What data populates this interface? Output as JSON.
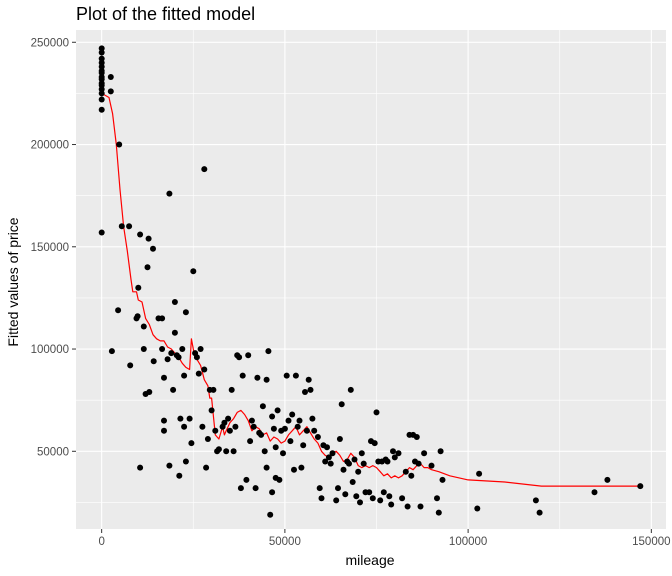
{
  "chart_data": {
    "type": "scatter",
    "title": "Plot of the fitted model",
    "xlabel": "mileage",
    "ylabel": "Fitted values of price",
    "xlim": [
      -7000,
      154000
    ],
    "ylim": [
      12000,
      256000
    ],
    "x_ticks": [
      0,
      50000,
      100000,
      150000
    ],
    "x_tick_labels": [
      "0",
      "50000",
      "100000",
      "150000"
    ],
    "y_ticks": [
      50000,
      100000,
      150000,
      200000,
      250000
    ],
    "y_tick_labels": [
      "50000",
      "100000",
      "150000",
      "200000",
      "250000"
    ],
    "grid": true,
    "legend": "none",
    "colors": {
      "panel": "#ebebeb",
      "grid": "#ffffff",
      "points": "#000000",
      "fit_line": "#ff0000"
    },
    "series": [
      {
        "type": "scatter",
        "points": [
          [
            0,
            247000
          ],
          [
            0,
            245000
          ],
          [
            0,
            242000
          ],
          [
            0,
            240000
          ],
          [
            0,
            238000
          ],
          [
            0,
            236000
          ],
          [
            0,
            235000
          ],
          [
            0,
            233000
          ],
          [
            0,
            232000
          ],
          [
            0,
            230000
          ],
          [
            0,
            229000
          ],
          [
            0,
            227000
          ],
          [
            0,
            225000
          ],
          [
            0,
            222000
          ],
          [
            0,
            217000
          ],
          [
            0,
            157000
          ],
          [
            2500,
            233000
          ],
          [
            2500,
            226000
          ],
          [
            4800,
            200000
          ],
          [
            5500,
            160000
          ],
          [
            7500,
            160000
          ],
          [
            2800,
            99000
          ],
          [
            4500,
            119000
          ],
          [
            7800,
            92000
          ],
          [
            9500,
            115000
          ],
          [
            9800,
            116000
          ],
          [
            10000,
            130000
          ],
          [
            10500,
            156000
          ],
          [
            10500,
            42000
          ],
          [
            11500,
            100000
          ],
          [
            11500,
            111000
          ],
          [
            12000,
            78000
          ],
          [
            12500,
            140000
          ],
          [
            12800,
            154000
          ],
          [
            13000,
            79000
          ],
          [
            14000,
            149000
          ],
          [
            14200,
            94000
          ],
          [
            15500,
            115000
          ],
          [
            16500,
            115000
          ],
          [
            16500,
            100000
          ],
          [
            17000,
            86000
          ],
          [
            17000,
            65000
          ],
          [
            17000,
            60000
          ],
          [
            18000,
            95000
          ],
          [
            18500,
            176000
          ],
          [
            18500,
            43000
          ],
          [
            19000,
            98000
          ],
          [
            19500,
            80000
          ],
          [
            20000,
            108000
          ],
          [
            20000,
            123000
          ],
          [
            20500,
            97000
          ],
          [
            21000,
            96000
          ],
          [
            21200,
            38000
          ],
          [
            21500,
            66000
          ],
          [
            22000,
            100000
          ],
          [
            22500,
            87000
          ],
          [
            22500,
            62000
          ],
          [
            23000,
            118000
          ],
          [
            23000,
            45000
          ],
          [
            24000,
            66000
          ],
          [
            24500,
            54000
          ],
          [
            25000,
            138000
          ],
          [
            25500,
            98000
          ],
          [
            26000,
            96000
          ],
          [
            26500,
            88000
          ],
          [
            27000,
            100000
          ],
          [
            27500,
            62000
          ],
          [
            28000,
            188000
          ],
          [
            28000,
            90000
          ],
          [
            28500,
            42000
          ],
          [
            29000,
            56000
          ],
          [
            29500,
            80000
          ],
          [
            30000,
            70000
          ],
          [
            30500,
            80000
          ],
          [
            31000,
            60000
          ],
          [
            31500,
            50000
          ],
          [
            32000,
            51000
          ],
          [
            33000,
            62000
          ],
          [
            33500,
            64000
          ],
          [
            34000,
            50000
          ],
          [
            34500,
            66000
          ],
          [
            35000,
            60000
          ],
          [
            35500,
            80000
          ],
          [
            36000,
            50000
          ],
          [
            36500,
            62000
          ],
          [
            37000,
            97000
          ],
          [
            37500,
            96000
          ],
          [
            38000,
            32000
          ],
          [
            38500,
            87000
          ],
          [
            39500,
            36000
          ],
          [
            40000,
            97000
          ],
          [
            40500,
            55000
          ],
          [
            41000,
            65000
          ],
          [
            41500,
            62000
          ],
          [
            42000,
            32000
          ],
          [
            42500,
            86000
          ],
          [
            43000,
            59000
          ],
          [
            43500,
            58000
          ],
          [
            44000,
            72000
          ],
          [
            44500,
            50000
          ],
          [
            45000,
            85000
          ],
          [
            45000,
            42000
          ],
          [
            45500,
            99000
          ],
          [
            46000,
            19000
          ],
          [
            46500,
            30000
          ],
          [
            46500,
            67000
          ],
          [
            47000,
            61000
          ],
          [
            47500,
            52000
          ],
          [
            47500,
            37000
          ],
          [
            48000,
            70000
          ],
          [
            48500,
            36000
          ],
          [
            49000,
            60000
          ],
          [
            49500,
            49000
          ],
          [
            50000,
            61000
          ],
          [
            50500,
            87000
          ],
          [
            51000,
            65000
          ],
          [
            51500,
            55000
          ],
          [
            52000,
            68000
          ],
          [
            52500,
            41000
          ],
          [
            53000,
            87000
          ],
          [
            53500,
            62000
          ],
          [
            54000,
            65000
          ],
          [
            54500,
            42000
          ],
          [
            55000,
            53000
          ],
          [
            55500,
            79000
          ],
          [
            56000,
            60000
          ],
          [
            56500,
            85000
          ],
          [
            57000,
            80000
          ],
          [
            57500,
            66000
          ],
          [
            58000,
            60000
          ],
          [
            59000,
            57000
          ],
          [
            59500,
            32000
          ],
          [
            60000,
            27000
          ],
          [
            60500,
            53000
          ],
          [
            61000,
            45000
          ],
          [
            61500,
            52000
          ],
          [
            62000,
            47000
          ],
          [
            62500,
            44000
          ],
          [
            63000,
            49000
          ],
          [
            64000,
            26000
          ],
          [
            64500,
            32000
          ],
          [
            65000,
            56000
          ],
          [
            65500,
            73000
          ],
          [
            66000,
            41000
          ],
          [
            66500,
            29000
          ],
          [
            67000,
            45000
          ],
          [
            67500,
            44000
          ],
          [
            68000,
            80000
          ],
          [
            68500,
            35000
          ],
          [
            69000,
            46000
          ],
          [
            69500,
            28000
          ],
          [
            70000,
            40000
          ],
          [
            70500,
            25000
          ],
          [
            71000,
            49000
          ],
          [
            71500,
            44000
          ],
          [
            72000,
            30000
          ],
          [
            73000,
            30000
          ],
          [
            73500,
            55000
          ],
          [
            74000,
            27000
          ],
          [
            74500,
            54000
          ],
          [
            75000,
            69000
          ],
          [
            75500,
            45000
          ],
          [
            76000,
            26000
          ],
          [
            76500,
            45000
          ],
          [
            77000,
            30000
          ],
          [
            77500,
            46000
          ],
          [
            78000,
            45000
          ],
          [
            78500,
            28000
          ],
          [
            79000,
            24000
          ],
          [
            79500,
            50000
          ],
          [
            80000,
            47000
          ],
          [
            81000,
            49000
          ],
          [
            82000,
            27000
          ],
          [
            83000,
            40000
          ],
          [
            83500,
            23000
          ],
          [
            84000,
            58000
          ],
          [
            84500,
            38000
          ],
          [
            85000,
            58000
          ],
          [
            85500,
            45000
          ],
          [
            86000,
            57000
          ],
          [
            86500,
            44000
          ],
          [
            87000,
            23000
          ],
          [
            88000,
            49000
          ],
          [
            90000,
            43000
          ],
          [
            91500,
            27000
          ],
          [
            92000,
            20000
          ],
          [
            92500,
            50000
          ],
          [
            93000,
            36000
          ],
          [
            102500,
            22000
          ],
          [
            103000,
            39000
          ],
          [
            118500,
            26000
          ],
          [
            119500,
            20000
          ],
          [
            134500,
            30000
          ],
          [
            138000,
            36000
          ],
          [
            147000,
            33000
          ]
        ]
      },
      {
        "type": "line",
        "name": "",
        "points": [
          [
            0,
            225000
          ],
          [
            2000,
            223000
          ],
          [
            3000,
            215000
          ],
          [
            4000,
            200000
          ],
          [
            5000,
            178000
          ],
          [
            6000,
            160000
          ],
          [
            7000,
            148000
          ],
          [
            8000,
            134000
          ],
          [
            8500,
            128000
          ],
          [
            9500,
            128000
          ],
          [
            10000,
            124000
          ],
          [
            11000,
            123000
          ],
          [
            12000,
            115000
          ],
          [
            13000,
            112000
          ],
          [
            14000,
            107000
          ],
          [
            15000,
            105000
          ],
          [
            16000,
            104000
          ],
          [
            17000,
            104000
          ],
          [
            18000,
            101000
          ],
          [
            19000,
            100000
          ],
          [
            20000,
            98000
          ],
          [
            21000,
            96000
          ],
          [
            22000,
            93000
          ],
          [
            23000,
            91000
          ],
          [
            24000,
            90000
          ],
          [
            24500,
            105000
          ],
          [
            25000,
            100000
          ],
          [
            25500,
            96000
          ],
          [
            26000,
            95000
          ],
          [
            27000,
            92000
          ],
          [
            28000,
            85000
          ],
          [
            29000,
            82000
          ],
          [
            29500,
            76000
          ],
          [
            30000,
            76000
          ],
          [
            31000,
            58000
          ],
          [
            32000,
            56000
          ],
          [
            33000,
            62000
          ],
          [
            33500,
            58000
          ],
          [
            34000,
            60000
          ],
          [
            35000,
            64000
          ],
          [
            36000,
            66000
          ],
          [
            37000,
            69000
          ],
          [
            38000,
            70000
          ],
          [
            39000,
            68000
          ],
          [
            40000,
            65000
          ],
          [
            41000,
            60000
          ],
          [
            42000,
            62000
          ],
          [
            43000,
            61000
          ],
          [
            44000,
            58000
          ],
          [
            45000,
            59000
          ],
          [
            46000,
            55000
          ],
          [
            47000,
            57000
          ],
          [
            48000,
            56000
          ],
          [
            49000,
            54000
          ],
          [
            50000,
            55000
          ],
          [
            51000,
            58000
          ],
          [
            52000,
            60000
          ],
          [
            53000,
            62000
          ],
          [
            54000,
            58000
          ],
          [
            55000,
            60000
          ],
          [
            56000,
            62000
          ],
          [
            57000,
            59000
          ],
          [
            58000,
            56000
          ],
          [
            59000,
            54000
          ],
          [
            60000,
            50000
          ],
          [
            61000,
            48000
          ],
          [
            62000,
            47000
          ],
          [
            63000,
            49000
          ],
          [
            64000,
            50000
          ],
          [
            65000,
            48000
          ],
          [
            66000,
            45000
          ],
          [
            67000,
            46000
          ],
          [
            68000,
            49000
          ],
          [
            69000,
            47000
          ],
          [
            70000,
            43000
          ],
          [
            71000,
            42000
          ],
          [
            72000,
            43000
          ],
          [
            73000,
            42000
          ],
          [
            74000,
            43000
          ],
          [
            75000,
            42000
          ],
          [
            76000,
            40000
          ],
          [
            77000,
            38000
          ],
          [
            78000,
            39000
          ],
          [
            79000,
            37000
          ],
          [
            80000,
            38000
          ],
          [
            81000,
            37000
          ],
          [
            82000,
            38000
          ],
          [
            83000,
            40000
          ],
          [
            84000,
            42000
          ],
          [
            85000,
            41000
          ],
          [
            86000,
            43000
          ],
          [
            87000,
            44000
          ],
          [
            88000,
            42000
          ],
          [
            89000,
            42000
          ],
          [
            90000,
            41000
          ],
          [
            92000,
            40000
          ],
          [
            95000,
            38000
          ],
          [
            100000,
            36000
          ],
          [
            110000,
            35000
          ],
          [
            120000,
            33000
          ],
          [
            147000,
            33000
          ]
        ]
      }
    ]
  }
}
